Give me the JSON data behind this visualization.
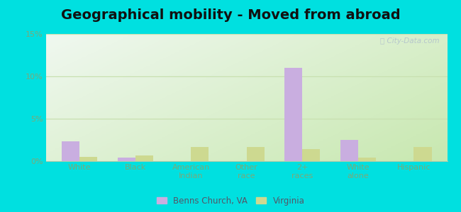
{
  "title": "Geographical mobility - Moved from abroad",
  "categories": [
    "White",
    "Black",
    "American\nIndian",
    "Other\nrace",
    "2+\nraces",
    "White\nalone",
    "Hispanic"
  ],
  "benns_church": [
    2.3,
    0.4,
    0.0,
    0.0,
    11.0,
    2.5,
    0.0
  ],
  "virginia": [
    0.5,
    0.7,
    1.7,
    1.7,
    1.4,
    0.4,
    1.7
  ],
  "bar_color_benns": "#c9aee0",
  "bar_color_virginia": "#cdd990",
  "legend_benns": "Benns Church, VA",
  "legend_virginia": "Virginia",
  "yticks": [
    0,
    5,
    10,
    15
  ],
  "ytick_labels": [
    "0%",
    "5%",
    "10%",
    "15%"
  ],
  "ylim": [
    0,
    15
  ],
  "outer_bg": "#00e0e0",
  "bar_width": 0.32,
  "title_fontsize": 14,
  "tick_label_fontsize": 8,
  "tick_color": "#7aaa7a",
  "grid_color": "#c8e0b0",
  "watermark_color": "#b0c0cc"
}
